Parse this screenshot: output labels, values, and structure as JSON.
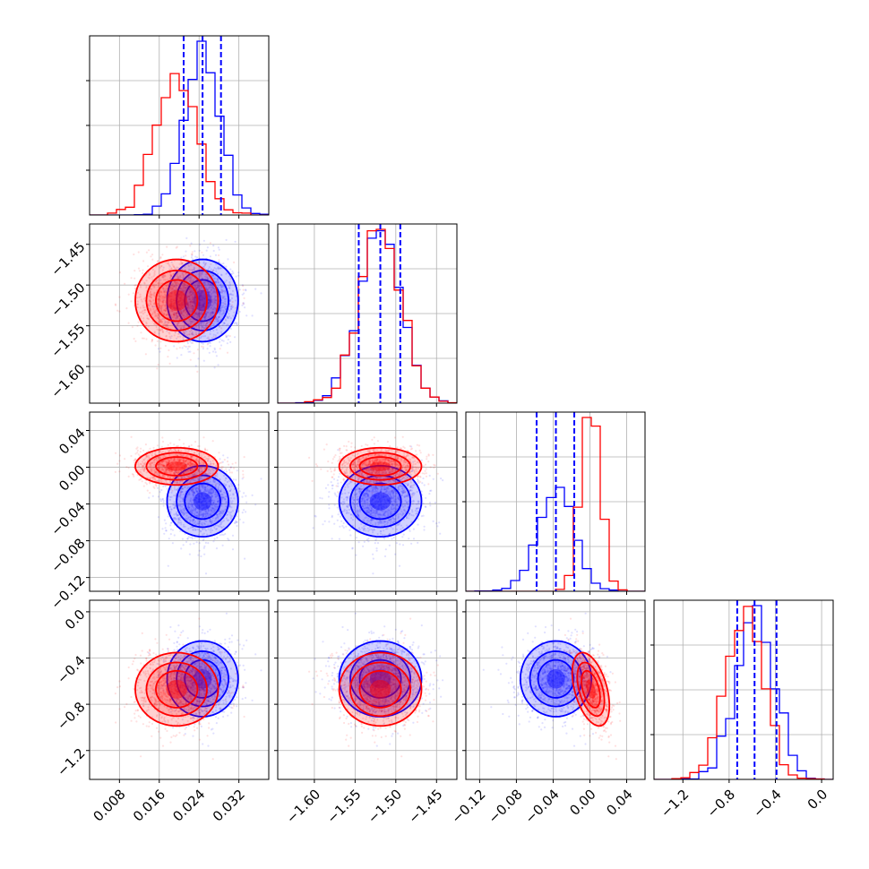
{
  "chart_data": {
    "type": "corner",
    "title": "",
    "grid": true,
    "parameters": [
      {
        "range": [
          0.002,
          0.038
        ],
        "ticks": [
          0.008,
          0.016,
          0.024,
          0.032
        ],
        "tick_labels": [
          "0.008",
          "0.016",
          "0.024",
          "0.032"
        ]
      },
      {
        "range": [
          -1.645,
          -1.425
        ],
        "ticks": [
          -1.6,
          -1.55,
          -1.5,
          -1.45
        ],
        "tick_labels": [
          "−1.60",
          "−1.55",
          "−1.50",
          "−1.45"
        ]
      },
      {
        "range": [
          -0.135,
          0.06
        ],
        "ticks": [
          -0.12,
          -0.08,
          -0.04,
          0.0,
          0.04
        ],
        "tick_labels": [
          "−0.12",
          "−0.08",
          "−0.04",
          "0.00",
          "0.04"
        ]
      },
      {
        "range": [
          -1.45,
          0.1
        ],
        "ticks": [
          -1.2,
          -0.8,
          -0.4,
          0.0
        ],
        "tick_labels": [
          "−1.2",
          "−0.8",
          "−0.4",
          "0.0"
        ]
      }
    ],
    "series": [
      {
        "color": "#0000ff",
        "means": [
          0.0247,
          -1.519,
          -0.037,
          -0.58
        ],
        "stds": [
          0.0036,
          0.0255,
          0.0195,
          0.165
        ],
        "correlations": [
          [
            1,
            0,
            0,
            0
          ],
          [
            0,
            1,
            0,
            0
          ],
          [
            0,
            0,
            1,
            0
          ],
          [
            0,
            0,
            0,
            1
          ]
        ],
        "quantile_lines": [
          [
            0.0209,
            0.0247,
            0.0284
          ],
          [
            -1.5455,
            -1.519,
            -1.4945
          ],
          [
            -0.058,
            -0.037,
            -0.017
          ],
          [
            -0.73,
            -0.58,
            -0.39
          ]
        ]
      },
      {
        "color": "#ff0000",
        "means": [
          0.0195,
          -1.519,
          0.001,
          -0.67
        ],
        "stds": [
          0.0042,
          0.0255,
          0.0102,
          0.16
        ],
        "correlations": [
          [
            1,
            0,
            0,
            0
          ],
          [
            0,
            1,
            0,
            0
          ],
          [
            0,
            0,
            1,
            -0.45
          ],
          [
            0,
            0,
            -0.45,
            1
          ]
        ],
        "quantile_lines": []
      }
    ]
  }
}
